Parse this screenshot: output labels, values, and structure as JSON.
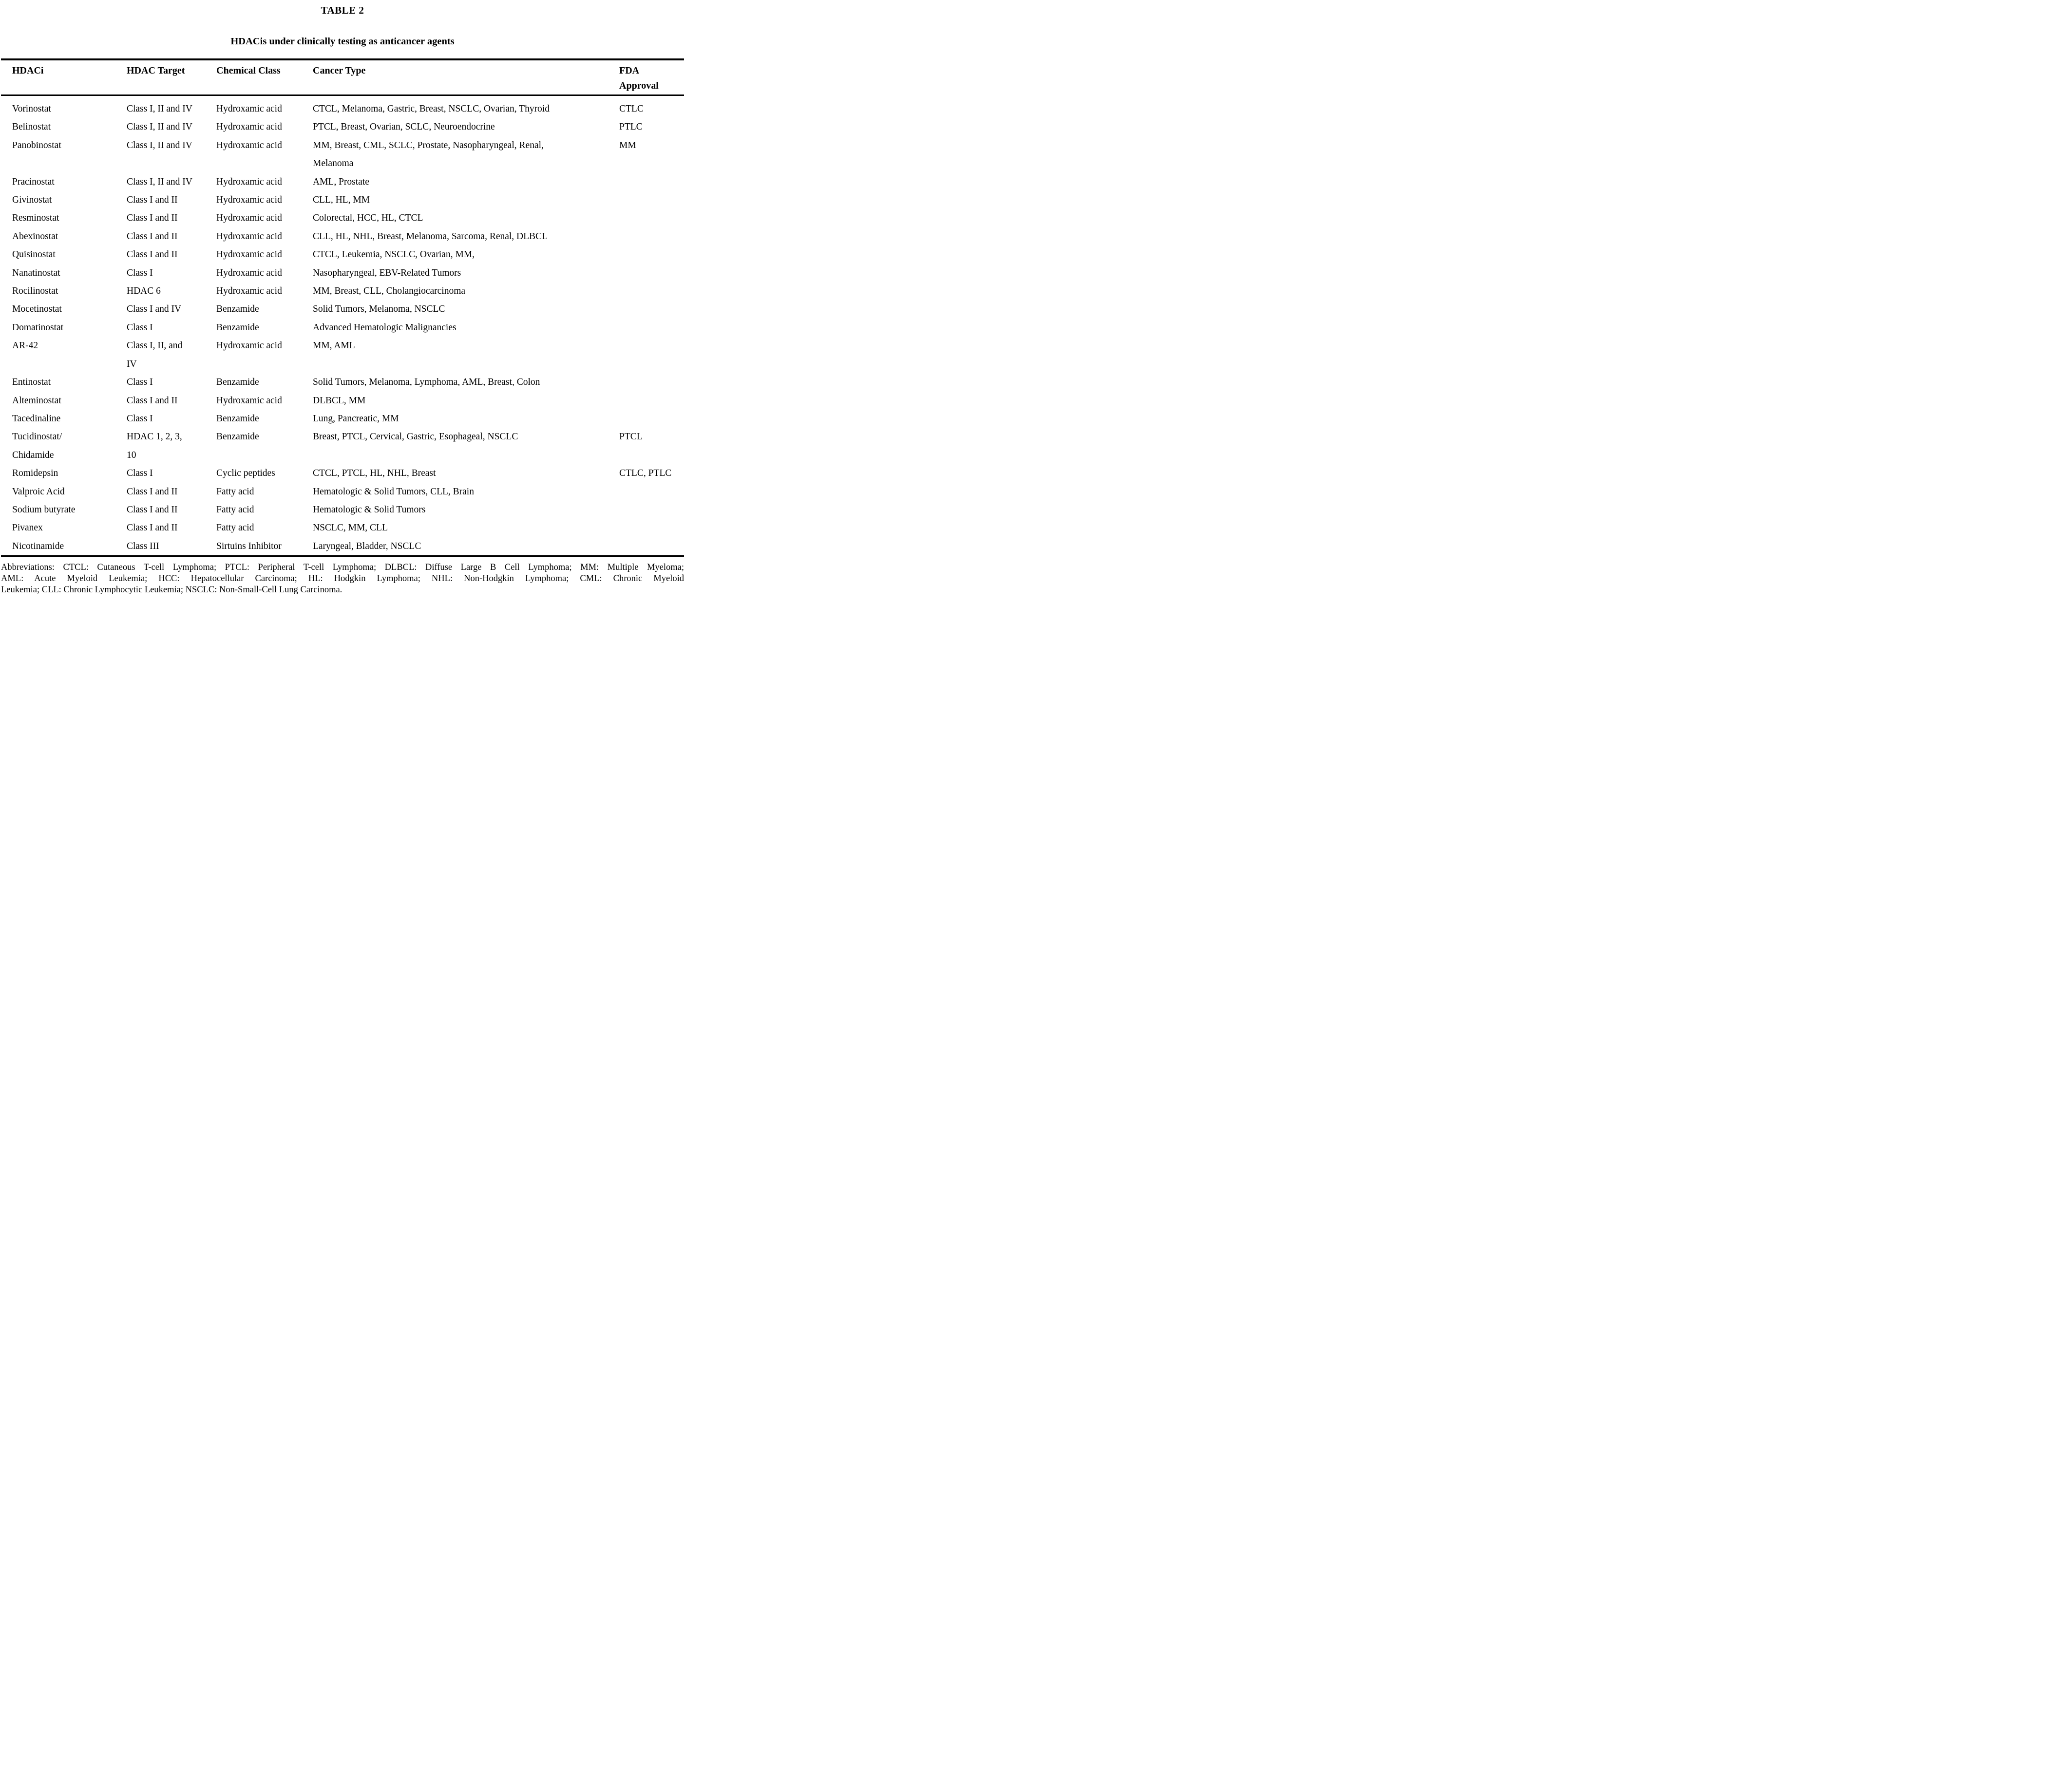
{
  "table": {
    "label": "TABLE 2",
    "caption": "HDACis under clinically testing as anticancer agents",
    "columns": [
      "HDACi",
      "HDAC Target",
      "Chemical Class",
      "Cancer Type",
      "FDA\nApproval"
    ],
    "rows": [
      {
        "hdaci": "Vorinostat",
        "target": "Class I, II and IV",
        "chemical_class": "Hydroxamic acid",
        "cancer_type": "CTCL, Melanoma, Gastric, Breast, NSCLC, Ovarian, Thyroid",
        "fda_approval": "CTLC"
      },
      {
        "hdaci": "Belinostat",
        "target": "Class I, II and IV",
        "chemical_class": "Hydroxamic acid",
        "cancer_type": "PTCL, Breast, Ovarian, SCLC, Neuroendocrine",
        "fda_approval": "PTLC"
      },
      {
        "hdaci": "Panobinostat",
        "target": "Class I, II and IV",
        "chemical_class": "Hydroxamic acid",
        "cancer_type": "MM, Breast, CML, SCLC, Prostate, Nasopharyngeal, Renal,\nMelanoma",
        "fda_approval": "MM"
      },
      {
        "hdaci": "Pracinostat",
        "target": "Class I, II and IV",
        "chemical_class": "Hydroxamic acid",
        "cancer_type": "AML, Prostate",
        "fda_approval": ""
      },
      {
        "hdaci": "Givinostat",
        "target": "Class I and II",
        "chemical_class": "Hydroxamic acid",
        "cancer_type": "CLL, HL, MM",
        "fda_approval": ""
      },
      {
        "hdaci": "Resminostat",
        "target": "Class I and II",
        "chemical_class": "Hydroxamic acid",
        "cancer_type": "Colorectal, HCC, HL, CTCL",
        "fda_approval": ""
      },
      {
        "hdaci": "Abexinostat",
        "target": "Class I and II",
        "chemical_class": "Hydroxamic acid",
        "cancer_type": "CLL, HL, NHL, Breast, Melanoma, Sarcoma, Renal, DLBCL",
        "fda_approval": ""
      },
      {
        "hdaci": "Quisinostat",
        "target": "Class I and II",
        "chemical_class": "Hydroxamic acid",
        "cancer_type": "CTCL, Leukemia, NSCLC, Ovarian, MM,",
        "fda_approval": ""
      },
      {
        "hdaci": "Nanatinostat",
        "target": "Class I",
        "chemical_class": "Hydroxamic acid",
        "cancer_type": "Nasopharyngeal, EBV-Related Tumors",
        "fda_approval": ""
      },
      {
        "hdaci": "Rocilinostat",
        "target": "HDAC 6",
        "chemical_class": "Hydroxamic acid",
        "cancer_type": "MM, Breast, CLL, Cholangiocarcinoma",
        "fda_approval": ""
      },
      {
        "hdaci": "Mocetinostat",
        "target": "Class I and IV",
        "chemical_class": "Benzamide",
        "cancer_type": "Solid Tumors, Melanoma, NSCLC",
        "fda_approval": ""
      },
      {
        "hdaci": "Domatinostat",
        "target": "Class I",
        "chemical_class": "Benzamide",
        "cancer_type": "Advanced Hematologic Malignancies",
        "fda_approval": ""
      },
      {
        "hdaci": "AR-42",
        "target": "Class I, II, and\nIV",
        "chemical_class": "Hydroxamic acid",
        "cancer_type": "MM, AML",
        "fda_approval": ""
      },
      {
        "hdaci": "Entinostat",
        "target": "Class I",
        "chemical_class": "Benzamide",
        "cancer_type": "Solid Tumors, Melanoma, Lymphoma, AML, Breast, Colon",
        "fda_approval": ""
      },
      {
        "hdaci": "Alteminostat",
        "target": "Class I and II",
        "chemical_class": "Hydroxamic acid",
        "cancer_type": "DLBCL, MM",
        "fda_approval": ""
      },
      {
        "hdaci": "Tacedinaline",
        "target": "Class I",
        "chemical_class": "Benzamide",
        "cancer_type": "Lung, Pancreatic, MM",
        "fda_approval": ""
      },
      {
        "hdaci": "Tucidinostat/\nChidamide",
        "target": "HDAC 1, 2, 3,\n10",
        "chemical_class": "Benzamide",
        "cancer_type": "Breast, PTCL, Cervical, Gastric, Esophageal, NSCLC",
        "fda_approval": "PTCL"
      },
      {
        "hdaci": "Romidepsin",
        "target": "Class I",
        "chemical_class": "Cyclic peptides",
        "cancer_type": "CTCL, PTCL, HL, NHL, Breast",
        "fda_approval": "CTLC, PTLC"
      },
      {
        "hdaci": "Valproic Acid",
        "target": "Class I and II",
        "chemical_class": "Fatty acid",
        "cancer_type": "Hematologic & Solid Tumors, CLL, Brain",
        "fda_approval": ""
      },
      {
        "hdaci": "Sodium butyrate",
        "target": "Class I and II",
        "chemical_class": "Fatty acid",
        "cancer_type": "Hematologic & Solid Tumors",
        "fda_approval": ""
      },
      {
        "hdaci": "Pivanex",
        "target": "Class I and II",
        "chemical_class": "Fatty acid",
        "cancer_type": "NSCLC, MM, CLL",
        "fda_approval": ""
      },
      {
        "hdaci": "Nicotinamide",
        "target": "Class III",
        "chemical_class": "Sirtuins Inhibitor",
        "cancer_type": "Laryngeal, Bladder, NSCLC",
        "fda_approval": ""
      }
    ],
    "footnote_lines": [
      "Abbreviations: CTCL: Cutaneous T-cell Lymphoma; PTCL: Peripheral T-cell Lymphoma; DLBCL: Diffuse Large B Cell Lymphoma; MM: Multiple Myeloma;",
      "AML: Acute Myeloid Leukemia; HCC: Hepatocellular Carcinoma; HL: Hodgkin Lymphoma; NHL: Non-Hodgkin Lymphoma; CML: Chronic Myeloid",
      "Leukemia; CLL: Chronic Lymphocytic Leukemia; NSCLC: Non-Small-Cell Lung Carcinoma."
    ]
  }
}
